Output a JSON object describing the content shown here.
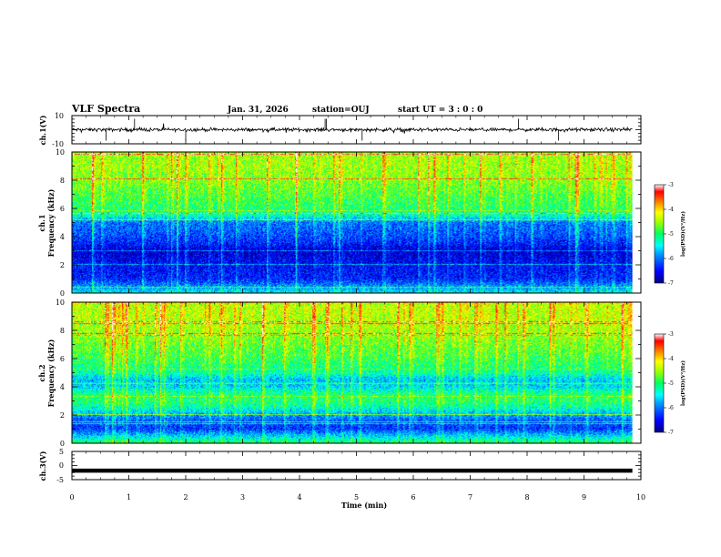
{
  "header": {
    "title": "VLF Spectra",
    "date": "Jan. 31, 2026",
    "station": "station=OUJ",
    "start_time": "start UT =  3 : 0  : 0"
  },
  "chart_data": [
    {
      "type": "line",
      "panel": "ch1-waveform",
      "ylabel": "ch.1(V)",
      "ylim": [
        -10,
        10
      ],
      "yticks": [
        "10",
        "-10"
      ],
      "xlim": [
        0,
        10
      ],
      "baseline": 0,
      "color": "#000000"
    },
    {
      "type": "heatmap",
      "panel": "ch1-spectrogram",
      "ylabel": "ch.1\nFrequency (kHz)",
      "ylabel_line1": "ch.1",
      "ylabel_line2": "Frequency (kHz)",
      "xlim": [
        0,
        10
      ],
      "ylim": [
        0,
        10
      ],
      "yticks": [
        "0",
        "2",
        "4",
        "6",
        "8",
        "10"
      ],
      "data_end_min": 9.85,
      "colorbar": {
        "label": "log(PSD)(V²/Hz)",
        "ticks": [
          "-3",
          "-4",
          "-5",
          "-6",
          "-7"
        ],
        "range": [
          -7,
          -3
        ]
      },
      "profile_khz": [
        0,
        1,
        2,
        2.5,
        3,
        3.5,
        4,
        5,
        5.5,
        6,
        7,
        8,
        9,
        10
      ],
      "profile_log_psd": [
        -5.5,
        -6.4,
        -6.5,
        -6.6,
        -6.7,
        -6.4,
        -6.2,
        -6.0,
        -5.3,
        -5.0,
        -4.8,
        -4.6,
        -4.5,
        -4.5
      ]
    },
    {
      "type": "heatmap",
      "panel": "ch2-spectrogram",
      "ylabel": "ch.2\nFrequency (kHz)",
      "ylabel_line1": "ch.2",
      "ylabel_line2": "Frequency (kHz)",
      "xlim": [
        0,
        10
      ],
      "ylim": [
        0,
        10
      ],
      "yticks": [
        "0",
        "2",
        "4",
        "6",
        "8",
        "10"
      ],
      "data_end_min": 9.85,
      "colorbar": {
        "label": "log(PSD)(V²/Hz)",
        "ticks": [
          "-3",
          "-4",
          "-5",
          "-6",
          "-7"
        ],
        "range": [
          -7,
          -3
        ]
      },
      "profile_khz": [
        0,
        1,
        1.5,
        2,
        2.5,
        3,
        3.5,
        4,
        4.5,
        5,
        6,
        7,
        8,
        9,
        10
      ],
      "profile_log_psd": [
        -5.0,
        -6.3,
        -6.2,
        -5.8,
        -5.3,
        -5.0,
        -5.1,
        -5.6,
        -5.7,
        -5.2,
        -4.9,
        -4.7,
        -4.5,
        -4.4,
        -4.4
      ]
    },
    {
      "type": "line",
      "panel": "ch3-waveform",
      "ylabel": "ch.3(V)",
      "ylim": [
        -5,
        5
      ],
      "yticks": [
        "5",
        "0",
        "-5"
      ],
      "xlim": [
        0,
        10
      ],
      "xticks": [
        "0",
        "1",
        "2",
        "3",
        "4",
        "5",
        "6",
        "7",
        "8",
        "9",
        "10"
      ],
      "xlabel": "Time (min)",
      "value": -1.8,
      "color": "#000000"
    }
  ]
}
